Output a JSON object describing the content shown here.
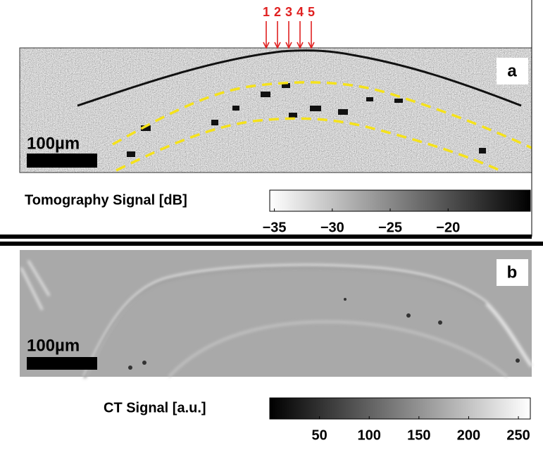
{
  "panels": [
    {
      "label": "a",
      "arrows": [
        "1",
        "2",
        "3",
        "4",
        "5"
      ],
      "scale_bar": "100µm",
      "colorbar": {
        "label": "Tomography Signal [dB]",
        "lim": [
          -35.4,
          -12.9
        ],
        "gradient": [
          "#ffffff",
          "#000000"
        ],
        "ticks": [
          {
            "value": -35,
            "label": "−35"
          },
          {
            "value": -30,
            "label": "−30"
          },
          {
            "value": -25,
            "label": "−25"
          },
          {
            "value": -20,
            "label": "−20"
          }
        ]
      }
    },
    {
      "label": "b",
      "scale_bar": "100µm",
      "colorbar": {
        "label": "CT Signal [a.u.]",
        "lim": [
          0,
          262
        ],
        "gradient": [
          "#000000",
          "#ffffff"
        ],
        "ticks": [
          50,
          100,
          150,
          200,
          250
        ]
      }
    }
  ]
}
